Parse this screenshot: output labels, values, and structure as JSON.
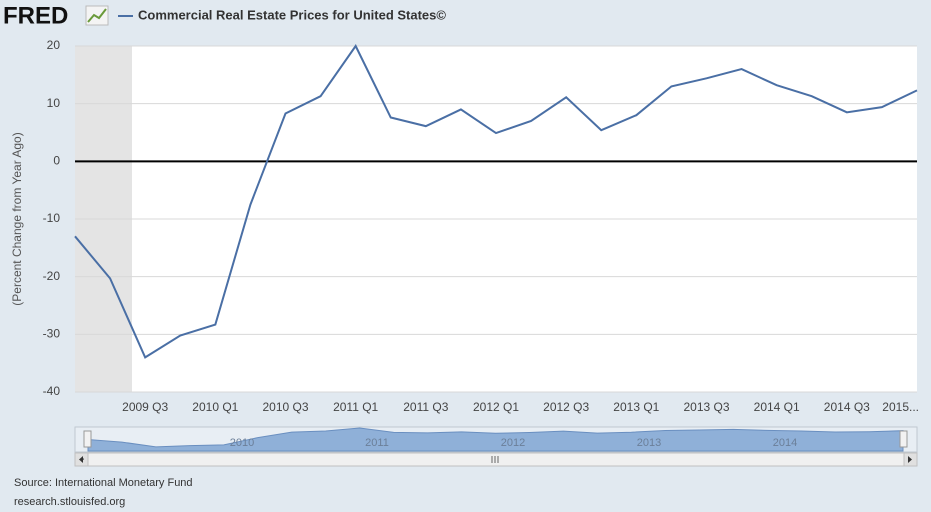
{
  "logo": "FRED",
  "chart_data": {
    "type": "line",
    "ylabel": "(Percent Change from Year Ago)",
    "categories": [
      null,
      null,
      "2009 Q3",
      null,
      "2010 Q1",
      null,
      "2010 Q3",
      null,
      "2011 Q1",
      null,
      "2011 Q3",
      null,
      "2012 Q1",
      null,
      "2012 Q3",
      null,
      "2013 Q1",
      null,
      "2013 Q3",
      null,
      "2014 Q1",
      null,
      "2014 Q3",
      null,
      "2015..."
    ],
    "series": [
      {
        "name": "Commercial Real Estate Prices for United States©",
        "color": "#4a6fa5",
        "values": [
          -13,
          -20.3,
          -34,
          -30.2,
          -28.3,
          -7.5,
          8.3,
          11.3,
          20,
          7.6,
          6.1,
          9,
          4.9,
          7,
          11.1,
          5.4,
          8,
          13,
          14.4,
          16,
          13.2,
          11.3,
          8.5,
          9.4,
          12.3
        ]
      }
    ],
    "ylim": [
      -40,
      20
    ],
    "yticks": [
      -40,
      -30,
      -20,
      -10,
      0,
      10,
      20
    ],
    "grid": true,
    "navigator_labels": [
      "2010",
      "2011",
      "2012",
      "2013",
      "2014"
    ]
  },
  "source": "Source: International Monetary Fund",
  "url": "research.stlouisfed.org"
}
